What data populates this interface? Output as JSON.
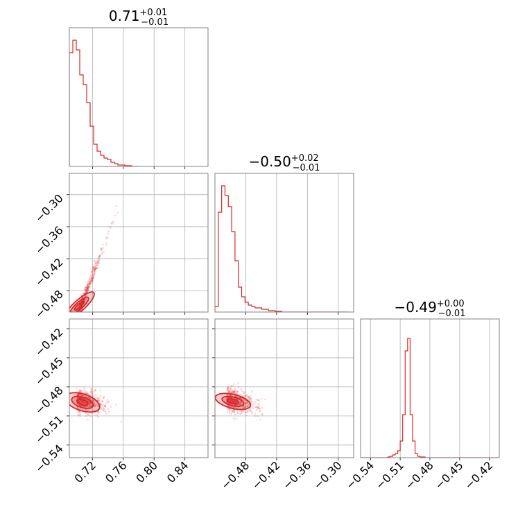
{
  "chart_data": {
    "type": "corner",
    "color": "#d62728",
    "grid": true,
    "panels": {
      "hist_1": {
        "type": "histogram",
        "title": {
          "median": "0.71",
          "upper": "+0.01",
          "lower": "−0.01"
        },
        "xlim": [
          0.69,
          0.87
        ],
        "x_ticks": [
          0.72,
          0.76,
          0.8,
          0.84
        ],
        "bins": {
          "start": 0.69,
          "width": 0.0045,
          "counts": [
            0.82,
            0.91,
            0.84,
            0.66,
            0.59,
            0.46,
            0.29,
            0.16,
            0.11,
            0.08,
            0.06,
            0.05,
            0.03,
            0.02,
            0.01,
            0.01,
            0.005,
            0.005,
            0,
            0
          ]
        }
      },
      "hist_2": {
        "type": "histogram",
        "title": {
          "median": "−0.50",
          "upper": "+0.02",
          "lower": "−0.01"
        },
        "xlim": [
          -0.54,
          -0.27
        ],
        "x_ticks": [
          -0.48,
          -0.42,
          -0.36,
          -0.3
        ],
        "bins": {
          "start": -0.54,
          "width": 0.0065,
          "counts": [
            0.04,
            0.72,
            0.91,
            0.84,
            0.76,
            0.58,
            0.37,
            0.18,
            0.11,
            0.07,
            0.05,
            0.04,
            0.03,
            0.03,
            0.02,
            0.02,
            0.01,
            0.01,
            0.005,
            0.005,
            0,
            0,
            0,
            0,
            0,
            0,
            0,
            0,
            0,
            0,
            0,
            0,
            0,
            0,
            0,
            0,
            0,
            0,
            0,
            0
          ]
        }
      },
      "hist_3": {
        "type": "histogram",
        "title": {
          "median": "−0.49",
          "upper": "+0.00",
          "lower": "−0.01"
        },
        "xlim": [
          -0.55,
          -0.41
        ],
        "x_ticks": [
          -0.54,
          -0.51,
          -0.48,
          -0.45,
          -0.42
        ],
        "x_tick_labels": [
          "−0.54",
          "−0.51",
          "−0.48",
          "−0.45",
          "−0.42"
        ],
        "bins": {
          "start": -0.55,
          "width": 0.0025,
          "counts": [
            0,
            0,
            0,
            0,
            0,
            0,
            0,
            0,
            0,
            0,
            0,
            0.005,
            0.01,
            0.02,
            0.03,
            0.05,
            0.12,
            0.31,
            0.77,
            0.86,
            0.31,
            0.12,
            0.03,
            0.01,
            0.005,
            0.005,
            0,
            0,
            0,
            0,
            0,
            0,
            0,
            0,
            0,
            0,
            0,
            0,
            0,
            0,
            0,
            0,
            0,
            0,
            0,
            0,
            0,
            0,
            0,
            0,
            0,
            0,
            0,
            0,
            0,
            0
          ]
        }
      },
      "scatter_2_1": {
        "type": "scatter-density",
        "xlim": [
          0.69,
          0.87
        ],
        "ylim": [
          -0.52,
          -0.26
        ],
        "y_ticks": [
          -0.3,
          -0.36,
          -0.42,
          -0.48
        ],
        "y_tick_labels": [
          "−0.30",
          "−0.36",
          "−0.42",
          "−0.48"
        ],
        "n_points": 550,
        "slope": 3.8,
        "x_center": 0.706,
        "y_center": -0.505,
        "spread_x": 0.014,
        "spread_y": 0.006
      },
      "scatter_3_1": {
        "type": "scatter-density",
        "xlim": [
          0.69,
          0.87
        ],
        "ylim": [
          -0.553,
          -0.41
        ],
        "y_ticks": [
          -0.42,
          -0.45,
          -0.48,
          -0.51,
          -0.54
        ],
        "y_tick_labels": [
          "−0.42",
          "−0.45",
          "−0.48",
          "−0.51",
          "−0.54"
        ],
        "x_ticks": [
          0.72,
          0.76,
          0.8,
          0.84
        ],
        "x_tick_labels": [
          "0.72",
          "0.76",
          "0.80",
          "0.84"
        ],
        "n_points": 550,
        "x_center": 0.708,
        "y_center": -0.494,
        "spread_x": 0.012,
        "spread_y": 0.006
      },
      "scatter_3_2": {
        "type": "scatter-density",
        "xlim": [
          -0.54,
          -0.27
        ],
        "ylim": [
          -0.553,
          -0.41
        ],
        "x_ticks": [
          -0.48,
          -0.42,
          -0.36,
          -0.3
        ],
        "x_tick_labels": [
          "−0.48",
          "−0.42",
          "−0.36",
          "−0.30"
        ],
        "n_points": 550,
        "x_center": -0.505,
        "y_center": -0.494,
        "spread_x": 0.02,
        "spread_y": 0.006
      }
    }
  }
}
